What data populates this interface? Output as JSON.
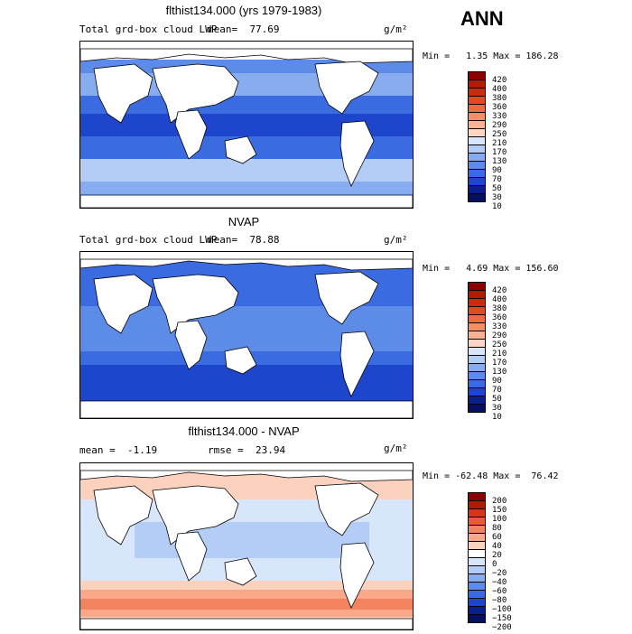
{
  "ann": "ANN",
  "panels": [
    {
      "title": "flthist134.000 (yrs 1979-1983)",
      "left_text": "Total grd-box cloud LWP",
      "mean_text": "mean=  77.69",
      "unit": "g/m²",
      "minmax": "Min =   1.35 Max = 186.28",
      "colorbar_labels": [
        "420",
        "400",
        "380",
        "360",
        "330",
        "290",
        "250",
        "210",
        "170",
        "130",
        "90",
        "70",
        "50",
        "30",
        "10"
      ]
    },
    {
      "title": "NVAP",
      "left_text": "Total grd-box cloud LWP",
      "mean_text": "mean=  78.88",
      "unit": "g/m²",
      "minmax": "Min =   4.69 Max = 156.60",
      "colorbar_labels": [
        "420",
        "400",
        "380",
        "360",
        "330",
        "290",
        "250",
        "210",
        "170",
        "130",
        "90",
        "70",
        "50",
        "30",
        "10"
      ]
    },
    {
      "title": "flthist134.000 - NVAP",
      "left_text": "mean =  -1.19",
      "mean_text": "rmse =  23.94",
      "unit": "g/m²",
      "minmax": "Min = -62.48 Max =  76.42",
      "colorbar_labels": [
        "200",
        "150",
        "100",
        "80",
        "60",
        "40",
        "20",
        "0",
        "−20",
        "−40",
        "−60",
        "−80",
        "−100",
        "−150",
        "−200"
      ]
    }
  ],
  "colors": {
    "lwp_scale": [
      "#8b0000",
      "#b31b00",
      "#cc2a0a",
      "#e04a1c",
      "#ef6b3c",
      "#f58f63",
      "#f8b192",
      "#fbd6c4",
      "#d7e6fb",
      "#b3cdf6",
      "#87adf0",
      "#5d8ce8",
      "#3b6be0",
      "#1e46cc",
      "#0a1f8c",
      "#061060"
    ],
    "diff_scale": [
      "#8b0000",
      "#b31b00",
      "#d8341a",
      "#ea5a36",
      "#f4845f",
      "#f9a88a",
      "#fcd2bf",
      "#ffffff",
      "#d7e6fb",
      "#b3cdf6",
      "#87adf0",
      "#5d8ce8",
      "#3b6be0",
      "#1e46cc",
      "#0a1f8c",
      "#061060"
    ]
  }
}
